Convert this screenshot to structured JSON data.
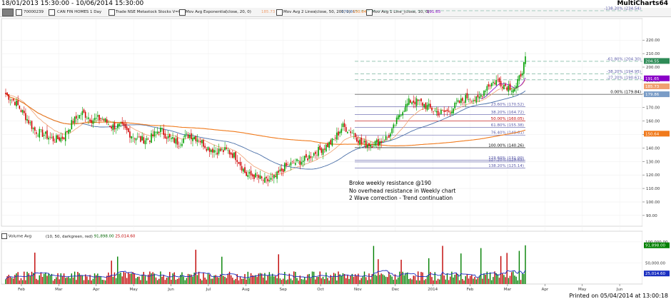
{
  "window": {
    "date_range": "18/01/2013 15:30:00 - 10/06/2014 15:30:00",
    "app_name": "MultiCharts64"
  },
  "toolbar": {
    "symbol_code": "70000239",
    "symbol_desc": "CAN FIN HOMES 1 Day",
    "exchange": "Trade NSE Metastock Stocks V=0",
    "ind1_name": "Mov Avg Exponential",
    "ind1_params": "(close, 20, 0)",
    "ind1_value": "185.73",
    "ind2_name": "Mov Avg 2 Lines",
    "ind2_params": "(close, 50, 200, 0)",
    "ind2_v1": "179.86",
    "ind2_v2": "150.64",
    "ind3_name": "Mov Avg 1 Line",
    "ind3_params": "_(close, 10, 0)",
    "ind3_value": "191.65"
  },
  "volume_panel": {
    "label": "Volume Avg",
    "params": "(10, 50, darkgreen, red)",
    "v1": "91,898.00",
    "v2": "25,014.60"
  },
  "annotations": [
    "Broke weekly resistance @190",
    "No overhead resistance in Weekly chart",
    "2 Wave correction - Trend continuation"
  ],
  "footer": "Printed on 05/04/2014 at 13:00:18",
  "colors": {
    "up_candle": "#00a000",
    "down_candle": "#d00000",
    "ema20": "#f0a070",
    "sma50": "#4a6fa8",
    "sma200": "#f07a1c",
    "fib_upper": "#5fa68a",
    "fib_lower": "#5a5aa8",
    "purple": "#8a00c8"
  },
  "chart_data": {
    "type": "candlestick",
    "x_labels": [
      "Feb",
      "Mar",
      "Apr",
      "May",
      "Jun",
      "Jul",
      "Aug",
      "Sep",
      "Oct",
      "Nov",
      "Dec",
      "2014",
      "Feb",
      "Mar",
      "Apr",
      "May",
      "Jun"
    ],
    "y_ticks": [
      90,
      100,
      110,
      120,
      130,
      140,
      150,
      160,
      170,
      180,
      190,
      200,
      210,
      220
    ],
    "price_labels": [
      {
        "value": 204.55,
        "color": "#2e8b57"
      },
      {
        "value": 191.65,
        "color": "#8a00c8"
      },
      {
        "value": 185.73,
        "color": "#f0a070"
      },
      {
        "value": 179.86,
        "color": "#7a9cc6"
      },
      {
        "value": 150.64,
        "color": "#f07a1c"
      }
    ],
    "fib_upper": [
      {
        "label": "-138.20% (234.54)",
        "price": 234.54
      },
      {
        "label": "-61.80% (204.30)",
        "price": 204.3
      },
      {
        "label": "-38.20% (194.95)",
        "price": 194.95
      },
      {
        "label": "-27.20% (190.61)",
        "price": 190.61
      },
      {
        "label": "0.00% (179.84)",
        "price": 179.84
      }
    ],
    "fib_lower": [
      {
        "label": "23.60% (170.52)",
        "price": 170.52
      },
      {
        "label": "38.20% (164.72)",
        "price": 164.72
      },
      {
        "label": "50.00% (160.05)",
        "price": 160.05
      },
      {
        "label": "61.80% (155.38)",
        "price": 155.38
      },
      {
        "label": "76.40% (149.61)",
        "price": 149.61
      },
      {
        "label": "100.00% (140.26)",
        "price": 140.26
      },
      {
        "label": "123.60% (131.00)",
        "price": 131.0
      },
      {
        "label": "127.20% (129.65)",
        "price": 129.65
      },
      {
        "label": "138.20% (125.14)",
        "price": 125.14
      }
    ],
    "volume_ticks": [
      {
        "label": "100,000.00",
        "value": 100000
      },
      {
        "label": "50,000.00",
        "value": 50000
      }
    ],
    "volume_ymax": 105000,
    "close_anchors": [
      [
        0,
        180
      ],
      [
        10,
        174
      ],
      [
        20,
        164
      ],
      [
        30,
        153
      ],
      [
        40,
        150
      ],
      [
        50,
        146
      ],
      [
        60,
        148
      ],
      [
        70,
        160
      ],
      [
        80,
        166
      ],
      [
        90,
        161
      ],
      [
        100,
        162
      ],
      [
        110,
        156
      ],
      [
        120,
        156
      ],
      [
        130,
        150
      ],
      [
        140,
        146
      ],
      [
        150,
        147
      ],
      [
        160,
        154
      ],
      [
        170,
        147
      ],
      [
        180,
        144
      ],
      [
        190,
        150
      ],
      [
        200,
        147
      ],
      [
        210,
        140
      ],
      [
        220,
        138
      ],
      [
        230,
        138
      ],
      [
        240,
        133
      ],
      [
        250,
        120
      ],
      [
        260,
        119
      ],
      [
        270,
        115
      ],
      [
        280,
        118
      ],
      [
        290,
        126
      ],
      [
        300,
        129
      ],
      [
        310,
        131
      ],
      [
        320,
        136
      ],
      [
        330,
        140
      ],
      [
        340,
        145
      ],
      [
        350,
        156
      ],
      [
        360,
        152
      ],
      [
        370,
        143
      ],
      [
        380,
        143
      ],
      [
        390,
        145
      ],
      [
        400,
        150
      ],
      [
        410,
        166
      ],
      [
        420,
        175
      ],
      [
        430,
        174
      ],
      [
        440,
        170
      ],
      [
        450,
        166
      ],
      [
        460,
        167
      ],
      [
        470,
        173
      ],
      [
        480,
        178
      ],
      [
        490,
        175
      ],
      [
        500,
        186
      ],
      [
        510,
        190
      ],
      [
        520,
        186
      ],
      [
        530,
        184
      ],
      [
        540,
        205
      ]
    ]
  }
}
